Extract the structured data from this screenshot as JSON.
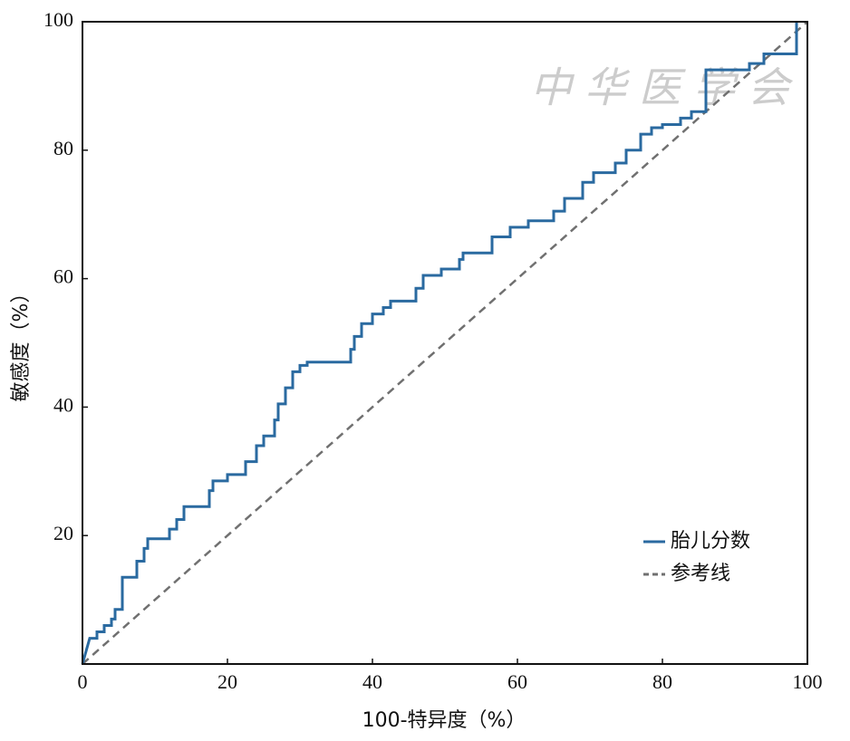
{
  "chart_data": {
    "type": "line",
    "xlabel": "100-特异度（%）",
    "ylabel": "敏感度（%）",
    "watermark": "中华医学会",
    "xlim": [
      0,
      100
    ],
    "xticks": [
      0,
      20,
      40,
      60,
      80,
      100
    ],
    "ylim": [
      0,
      100
    ],
    "yticks": [
      20,
      40,
      60,
      80,
      100
    ],
    "legend": "lower right",
    "series": [
      {
        "name": "胎儿分数",
        "color": "#2a6aa0",
        "line_style": "solid",
        "x": [
          0,
          0.5,
          1,
          2,
          2,
          3,
          3,
          4,
          4,
          4.5,
          4.5,
          5.5,
          5.5,
          7.5,
          7.5,
          8.5,
          8.5,
          9,
          9,
          12,
          12,
          13,
          13,
          14,
          14,
          17.5,
          17.5,
          18,
          18,
          20,
          20,
          22.5,
          22.5,
          24,
          24,
          25,
          25,
          26.5,
          26.5,
          27,
          27,
          28,
          28,
          29,
          29,
          30,
          30,
          31,
          31,
          37,
          37,
          37.5,
          37.5,
          38.5,
          38.5,
          40,
          40,
          41.5,
          41.5,
          42.5,
          42.5,
          46,
          46,
          47,
          47,
          49.5,
          49.5,
          52,
          52,
          52.5,
          52.5,
          56.5,
          56.5,
          59,
          59,
          61.5,
          61.5,
          65,
          65,
          66.5,
          66.5,
          69,
          69,
          70.5,
          70.5,
          73.5,
          73.5,
          75,
          75,
          77,
          77,
          78.5,
          78.5,
          80,
          80,
          82.5,
          82.5,
          84,
          84,
          86,
          86,
          92,
          92,
          94,
          94,
          98.5,
          98.5
        ],
        "values": [
          0,
          2,
          4,
          4,
          5,
          5,
          6,
          6,
          7,
          7,
          8.5,
          8.5,
          13.5,
          13.5,
          16,
          16,
          18,
          18,
          19.5,
          19.5,
          21,
          21,
          22.5,
          22.5,
          24.5,
          24.5,
          27,
          27,
          28.5,
          28.5,
          29.5,
          29.5,
          31.5,
          31.5,
          34,
          34,
          35.5,
          35.5,
          38,
          38,
          40.5,
          40.5,
          43,
          43,
          45.5,
          45.5,
          46.5,
          46.5,
          47,
          47,
          49,
          49,
          51,
          51,
          53,
          53,
          54.5,
          54.5,
          55.5,
          55.5,
          56.5,
          56.5,
          58.5,
          58.5,
          60.5,
          60.5,
          61.5,
          61.5,
          63,
          63,
          64,
          64,
          66.5,
          66.5,
          68,
          68,
          69,
          69,
          70.5,
          70.5,
          72.5,
          72.5,
          75,
          75,
          76.5,
          76.5,
          78,
          78,
          80,
          80,
          82.5,
          82.5,
          83.5,
          83.5,
          84,
          84,
          85,
          85,
          86,
          86,
          92.5,
          92.5,
          93.5,
          93.5,
          95,
          95,
          100
        ]
      },
      {
        "name": "参考线",
        "color": "#707070",
        "line_style": "dashed",
        "x": [
          0,
          100
        ],
        "values": [
          0,
          100
        ]
      }
    ]
  }
}
